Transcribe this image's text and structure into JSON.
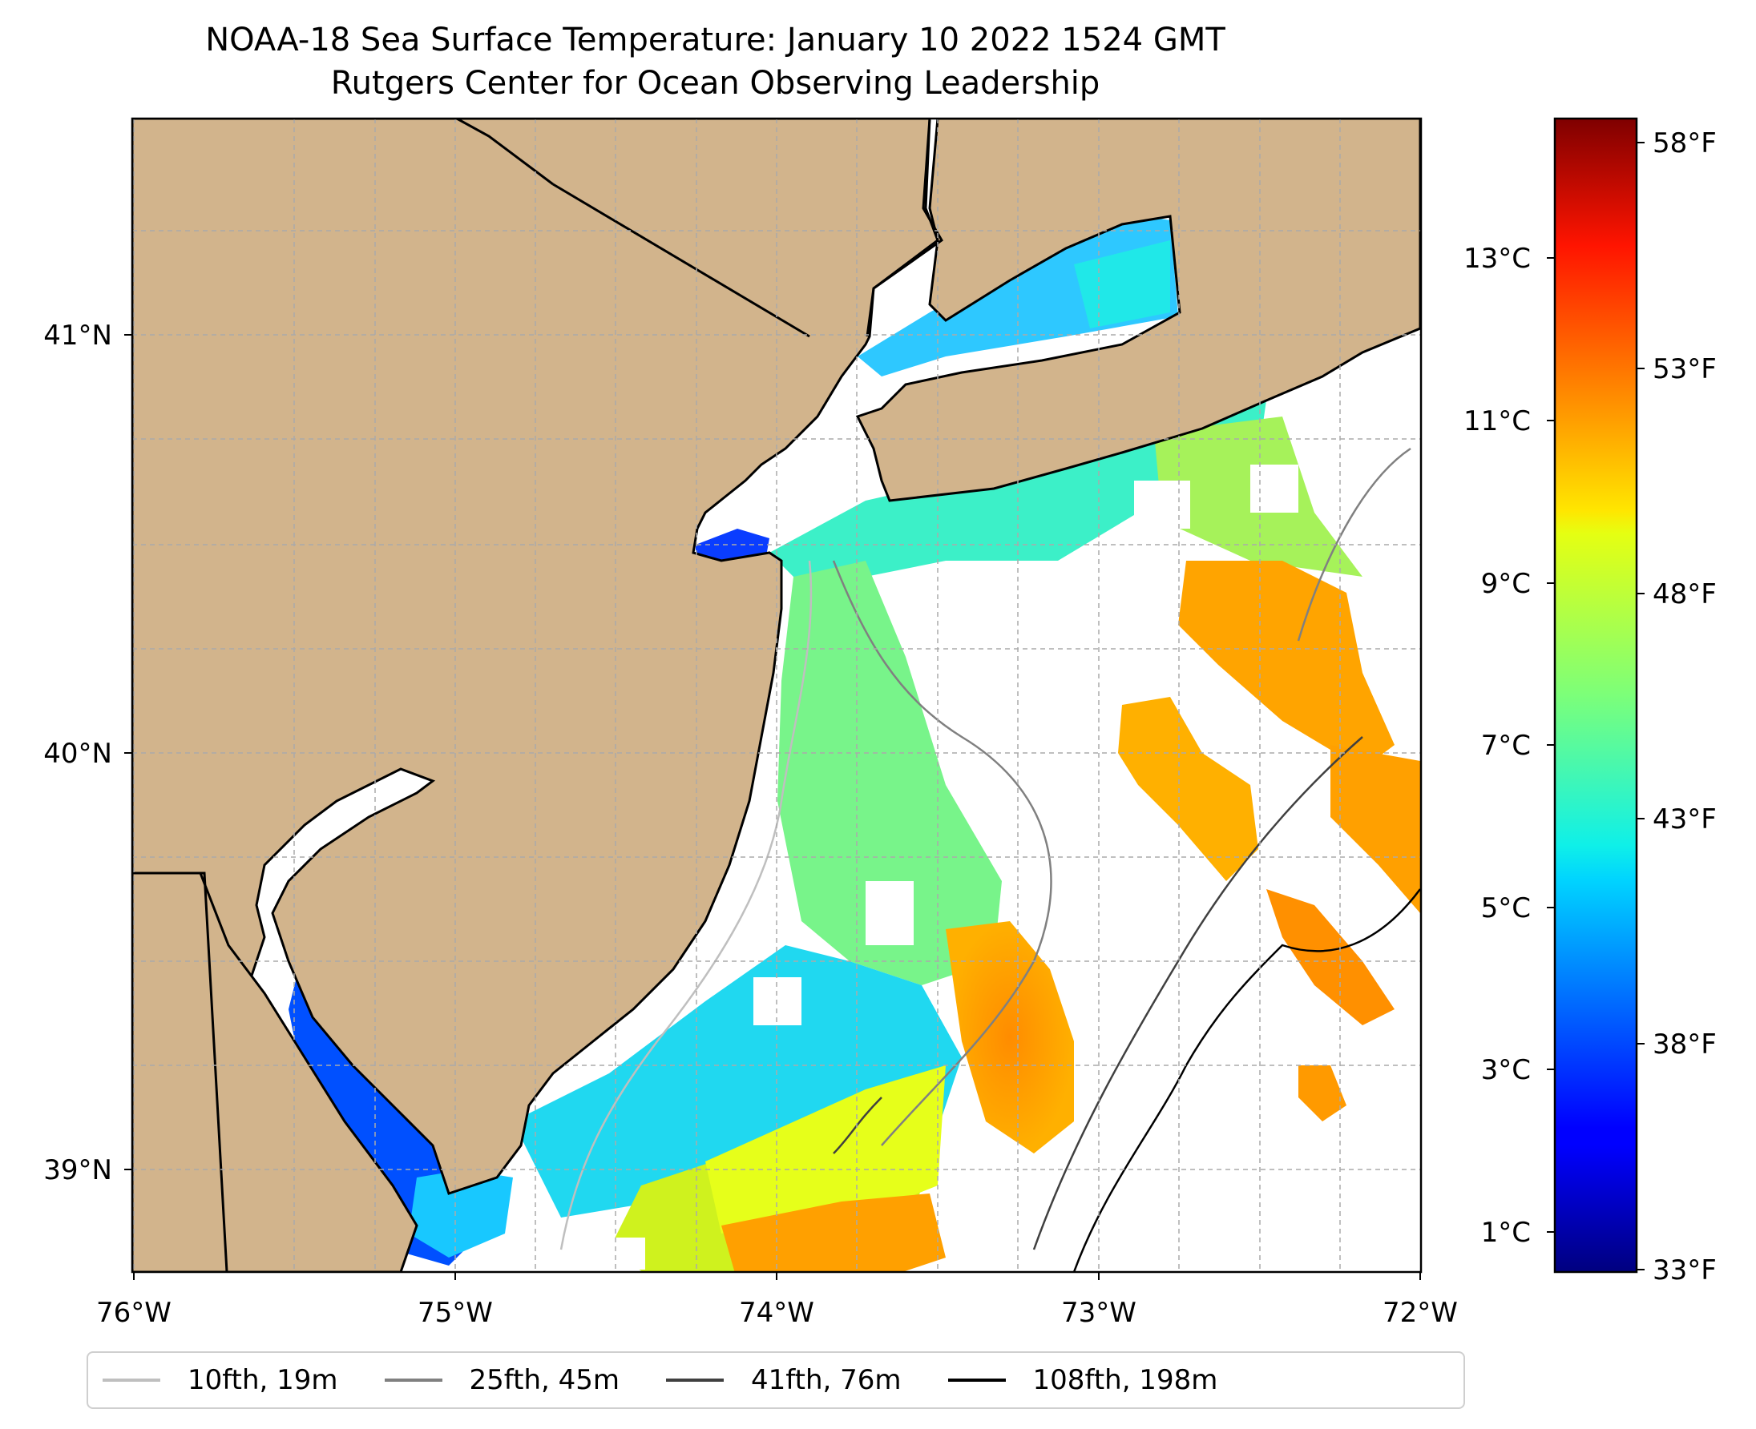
{
  "title": {
    "line1": "NOAA-18 Sea Surface Temperature: January 10 2022 1524 GMT",
    "line2": "Rutgers Center for Ocean Observing Leadership"
  },
  "map": {
    "lon_ticks": [
      "76°W",
      "75°W",
      "74°W",
      "73°W",
      "72°W"
    ],
    "lat_ticks": [
      "41°N",
      "40°N",
      "39°N"
    ],
    "colors": {
      "land": "#d2b48c",
      "water_nodata": "#ffffff",
      "grid": "#aaaaaa"
    }
  },
  "colorbar": {
    "celsius_ticks": [
      "13°C",
      "11°C",
      "9°C",
      "7°C",
      "5°C",
      "3°C",
      "1°C"
    ],
    "fahrenheit_ticks": [
      "58°F",
      "53°F",
      "48°F",
      "43°F",
      "38°F",
      "33°F"
    ],
    "colormap": "jet"
  },
  "legend": {
    "items": [
      {
        "label": "10fth, 19m",
        "color": "#bfbfbf"
      },
      {
        "label": "25fth, 45m",
        "color": "#808080"
      },
      {
        "label": "41fth, 76m",
        "color": "#404040"
      },
      {
        "label": "108fth, 198m",
        "color": "#000000"
      }
    ]
  }
}
